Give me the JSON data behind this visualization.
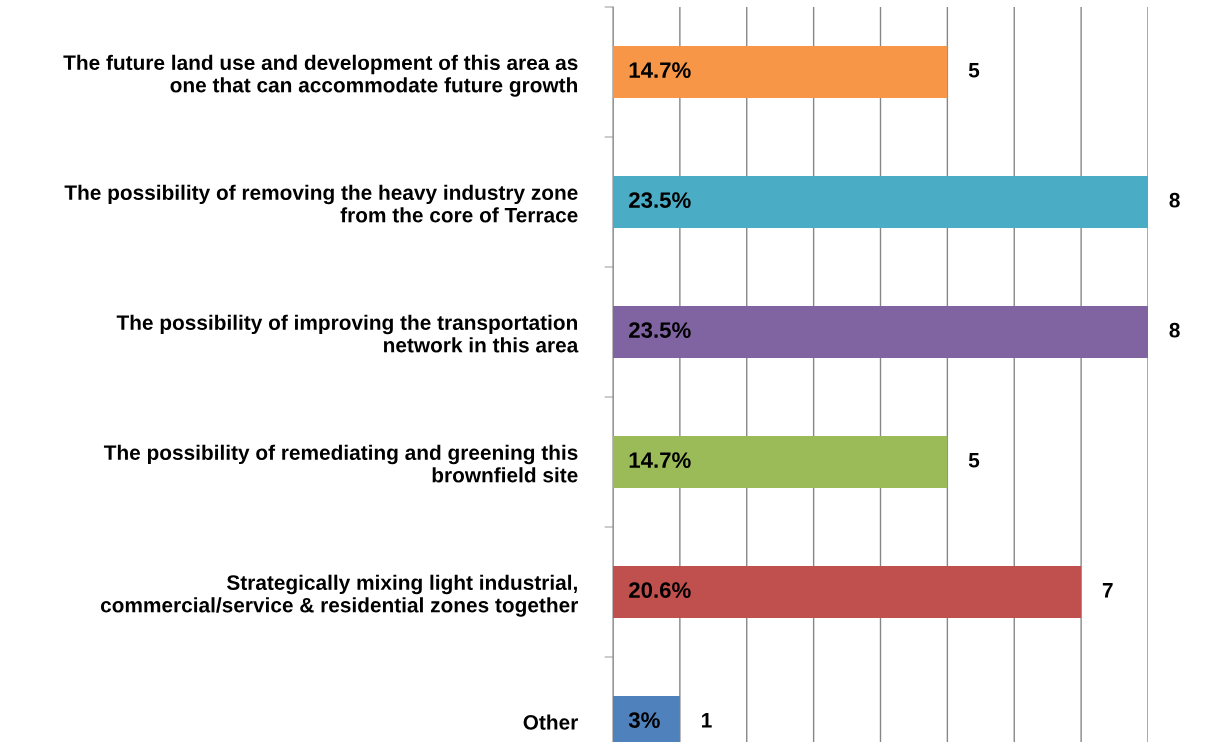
{
  "chart_data": {
    "type": "bar",
    "orientation": "horizontal",
    "categories": [
      "The future land use and development of this area as\none that can accommodate future growth",
      "The possibility of removing the heavy industry zone\nfrom the core of Terrace",
      "The possibility of improving the transportation\nnetwork in this area",
      "The possibility of remediating and greening this\nbrownfield site",
      "Strategically mixing light industrial,\ncommercial/service & residential zones together",
      "Other"
    ],
    "values": [
      5,
      8,
      8,
      5,
      7,
      1
    ],
    "colors": [
      "#f79646",
      "#4bacc6",
      "#8064a2",
      "#9bbb59",
      "#c0504d",
      "#4f81bd"
    ],
    "value_labels": [
      "5",
      "8",
      "8",
      "5",
      "7",
      "1"
    ],
    "annotations": [
      "14.7%",
      "23.5%",
      "23.5%",
      "14.7%",
      "20.6%",
      "3%"
    ],
    "xlim": [
      0,
      8
    ],
    "grid": "x",
    "legend": false,
    "tick_labels": "y"
  }
}
